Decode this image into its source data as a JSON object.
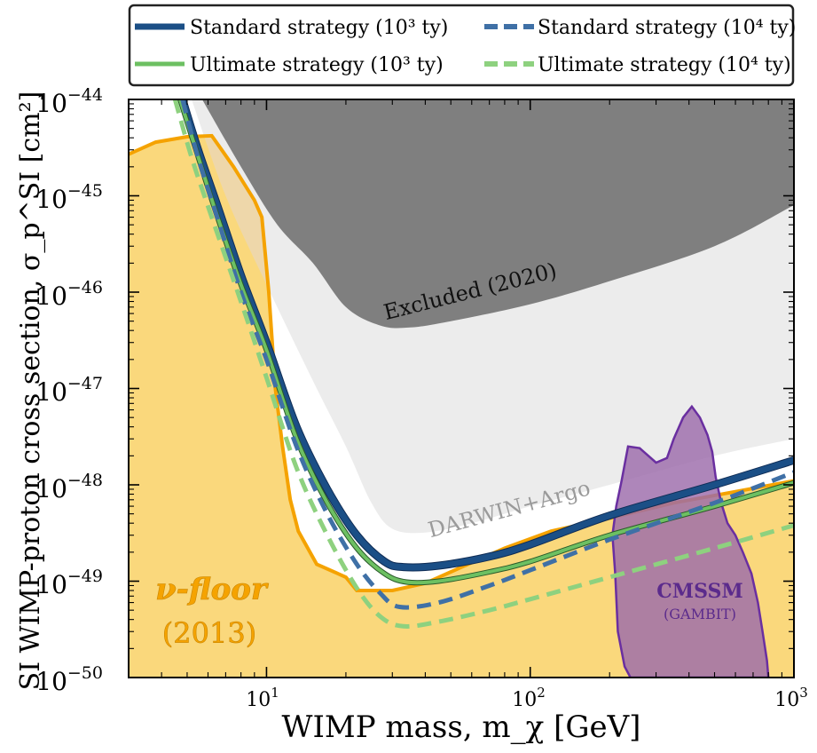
{
  "chart_data": {
    "type": "line",
    "xscale": "log",
    "yscale": "log",
    "xlim": [
      3,
      1000
    ],
    "ylim": [
      1e-50,
      1e-44
    ],
    "xlabel": "WIMP mass, m_χ [GeV]",
    "ylabel": "SI WIMP-proton cross section, σ_p^SI [cm²]",
    "x_ticks": [
      {
        "value": 10,
        "base": "10",
        "exp": "1"
      },
      {
        "value": 100,
        "base": "10",
        "exp": "2"
      },
      {
        "value": 1000,
        "base": "10",
        "exp": "3"
      }
    ],
    "y_ticks": [
      {
        "value": 1e-44,
        "base": "10",
        "exp": "−44"
      },
      {
        "value": 1e-45,
        "base": "10",
        "exp": "−45"
      },
      {
        "value": 1e-46,
        "base": "10",
        "exp": "−46"
      },
      {
        "value": 1e-47,
        "base": "10",
        "exp": "−47"
      },
      {
        "value": 1e-48,
        "base": "10",
        "exp": "−48"
      },
      {
        "value": 1e-49,
        "base": "10",
        "exp": "−49"
      },
      {
        "value": 1e-50,
        "base": "10",
        "exp": "−50"
      }
    ],
    "legend": {
      "placement": "top",
      "entries": [
        {
          "label": "Standard strategy (10³ ty)",
          "color": "#1b4f86",
          "style": "solid"
        },
        {
          "label": "Standard strategy (10⁴ ty)",
          "color": "#3f70a6",
          "style": "dashed"
        },
        {
          "label": "Ultimate strategy (10³ ty)",
          "color": "#6dc062",
          "style": "solid"
        },
        {
          "label": "Ultimate strategy (10⁴ ty)",
          "color": "#8ed17f",
          "style": "dashed"
        }
      ]
    },
    "series": [
      {
        "name": "Standard strategy (10³ ty)",
        "color": "#1b4f86",
        "dash": false,
        "width": 7,
        "points": [
          [
            4.8,
            1e-44
          ],
          [
            5.5,
            3e-45
          ],
          [
            6.5,
            8e-46
          ],
          [
            8,
            1.5e-46
          ],
          [
            10,
            3e-47
          ],
          [
            13,
            4e-48
          ],
          [
            17,
            9e-49
          ],
          [
            22,
            3e-49
          ],
          [
            28,
            1.6e-49
          ],
          [
            33,
            1.4e-49
          ],
          [
            45,
            1.45e-49
          ],
          [
            70,
            1.8e-49
          ],
          [
            100,
            2.4e-49
          ],
          [
            200,
            4.8e-49
          ],
          [
            500,
            1e-48
          ],
          [
            1000,
            1.8e-48
          ]
        ]
      },
      {
        "name": "Ultimate strategy (10³ ty)",
        "color": "#6dc062",
        "dash": false,
        "width": 4,
        "points": [
          [
            4.7,
            1e-44
          ],
          [
            5.4,
            3e-45
          ],
          [
            6.4,
            7e-46
          ],
          [
            8,
            1.2e-46
          ],
          [
            10,
            2.5e-47
          ],
          [
            13,
            3e-48
          ],
          [
            17,
            6.5e-49
          ],
          [
            22,
            2.2e-49
          ],
          [
            28,
            1.2e-49
          ],
          [
            34,
            9.8e-50
          ],
          [
            45,
            1e-49
          ],
          [
            70,
            1.25e-49
          ],
          [
            100,
            1.6e-49
          ],
          [
            200,
            3e-49
          ],
          [
            500,
            6e-49
          ],
          [
            1000,
            1.05e-48
          ]
        ]
      },
      {
        "name": "Standard strategy (10⁴ ty)",
        "color": "#3f70a6",
        "dash": true,
        "width": 5,
        "points": [
          [
            4.8,
            1e-44
          ],
          [
            5.5,
            2.5e-45
          ],
          [
            6.5,
            6e-46
          ],
          [
            8,
            1e-46
          ],
          [
            10,
            2e-47
          ],
          [
            13,
            2.5e-48
          ],
          [
            17,
            5e-49
          ],
          [
            22,
            1.5e-49
          ],
          [
            27,
            7.5e-50
          ],
          [
            32,
            5.4e-50
          ],
          [
            45,
            6e-50
          ],
          [
            70,
            9e-50
          ],
          [
            100,
            1.3e-49
          ],
          [
            200,
            2.7e-49
          ],
          [
            500,
            6.5e-49
          ],
          [
            1000,
            1.35e-48
          ]
        ]
      },
      {
        "name": "Ultimate strategy (10⁴ ty)",
        "color": "#8ed17f",
        "dash": true,
        "width": 5,
        "points": [
          [
            4.5,
            1e-44
          ],
          [
            5.2,
            2.5e-45
          ],
          [
            6.2,
            6e-46
          ],
          [
            8,
            8e-47
          ],
          [
            10,
            1.3e-47
          ],
          [
            13,
            1.5e-48
          ],
          [
            17,
            3e-49
          ],
          [
            22,
            8.5e-50
          ],
          [
            27,
            4.3e-50
          ],
          [
            33,
            3.4e-50
          ],
          [
            45,
            3.8e-50
          ],
          [
            70,
            5e-50
          ],
          [
            100,
            6.5e-50
          ],
          [
            200,
            1.1e-49
          ],
          [
            500,
            2.2e-49
          ],
          [
            1000,
            3.8e-49
          ]
        ]
      }
    ],
    "regions": [
      {
        "id": "excluded",
        "label": "Excluded (2020)",
        "color": "#7f7f7f",
        "boundary": [
          [
            5.7,
            1e-44
          ],
          [
            8,
            2e-45
          ],
          [
            11,
            5e-46
          ],
          [
            15,
            2e-46
          ],
          [
            20,
            7e-47
          ],
          [
            27,
            4.5e-47
          ],
          [
            35,
            4.3e-47
          ],
          [
            50,
            5e-47
          ],
          [
            100,
            7.5e-47
          ],
          [
            200,
            1.3e-46
          ],
          [
            500,
            3e-46
          ],
          [
            1000,
            8e-46
          ]
        ]
      },
      {
        "id": "darwin",
        "label": "DARWIN+Argo",
        "color": "#ececec",
        "boundary": [
          [
            5.2,
            1e-44
          ],
          [
            7,
            1e-45
          ],
          [
            10,
            1.2e-46
          ],
          [
            15,
            1.2e-47
          ],
          [
            20,
            2.5e-48
          ],
          [
            25,
            6.5e-49
          ],
          [
            30,
            3.5e-49
          ],
          [
            40,
            3.2e-49
          ],
          [
            60,
            4e-49
          ],
          [
            100,
            6e-49
          ],
          [
            200,
            1e-48
          ],
          [
            500,
            2e-48
          ],
          [
            1000,
            3e-48
          ]
        ]
      },
      {
        "id": "nu_floor",
        "label": "ν-floor",
        "sublabel": "(2013)",
        "color": "#fdeda8",
        "edge_color": "#f5a300",
        "boundary": [
          [
            3,
            2.7e-45
          ],
          [
            3.8,
            3.6e-45
          ],
          [
            5,
            4.1e-45
          ],
          [
            6.2,
            4.2e-45
          ],
          [
            7.5,
            2e-45
          ],
          [
            9,
            9e-46
          ],
          [
            9.6,
            6e-46
          ],
          [
            10.2,
            1e-46
          ],
          [
            10.8,
            1e-47
          ],
          [
            11.5,
            2.5e-48
          ],
          [
            12.3,
            7e-49
          ],
          [
            13.2,
            3.3e-49
          ],
          [
            15.5,
            1.5e-49
          ],
          [
            20,
            1.1e-49
          ],
          [
            22,
            8e-50
          ],
          [
            30,
            8e-50
          ],
          [
            40,
            9.5e-50
          ],
          [
            55,
            1.4e-49
          ],
          [
            80,
            2.2e-49
          ],
          [
            120,
            3.3e-49
          ],
          [
            200,
            4.5e-49
          ],
          [
            350,
            6.5e-49
          ],
          [
            600,
            8.5e-49
          ],
          [
            1000,
            1.1e-48
          ]
        ]
      },
      {
        "id": "cmssm",
        "label": "CMSSM",
        "sublabel": "(GAMBIT)",
        "color": "#9c6bab",
        "edge_color": "#6a2fa0",
        "boundary": [
          [
            240,
            1e-50
          ],
          [
            228,
            1.3e-50
          ],
          [
            215,
            3e-50
          ],
          [
            210,
            1.2e-49
          ],
          [
            205,
            3e-49
          ],
          [
            212,
            6e-49
          ],
          [
            222,
            1.1e-48
          ],
          [
            235,
            2.5e-48
          ],
          [
            260,
            2.4e-48
          ],
          [
            300,
            1.7e-48
          ],
          [
            330,
            1.9e-48
          ],
          [
            350,
            3e-48
          ],
          [
            380,
            5e-48
          ],
          [
            410,
            6.5e-48
          ],
          [
            440,
            5e-48
          ],
          [
            470,
            3.3e-48
          ],
          [
            490,
            2.2e-48
          ],
          [
            505,
            1.2e-48
          ],
          [
            530,
            6.5e-49
          ],
          [
            560,
            4e-49
          ],
          [
            600,
            3e-49
          ],
          [
            640,
            2e-49
          ],
          [
            690,
            1.2e-49
          ],
          [
            730,
            6e-50
          ],
          [
            760,
            3e-50
          ],
          [
            790,
            1.5e-50
          ],
          [
            800,
            1e-50
          ]
        ]
      }
    ],
    "annotations": [
      {
        "text": "Excluded  (2020)"
      },
      {
        "text": "DARWIN+Argo"
      },
      {
        "text": "ν-floor"
      },
      {
        "text": "(2013)"
      },
      {
        "text": "CMSSM"
      },
      {
        "text": "(GAMBIT)"
      }
    ]
  }
}
